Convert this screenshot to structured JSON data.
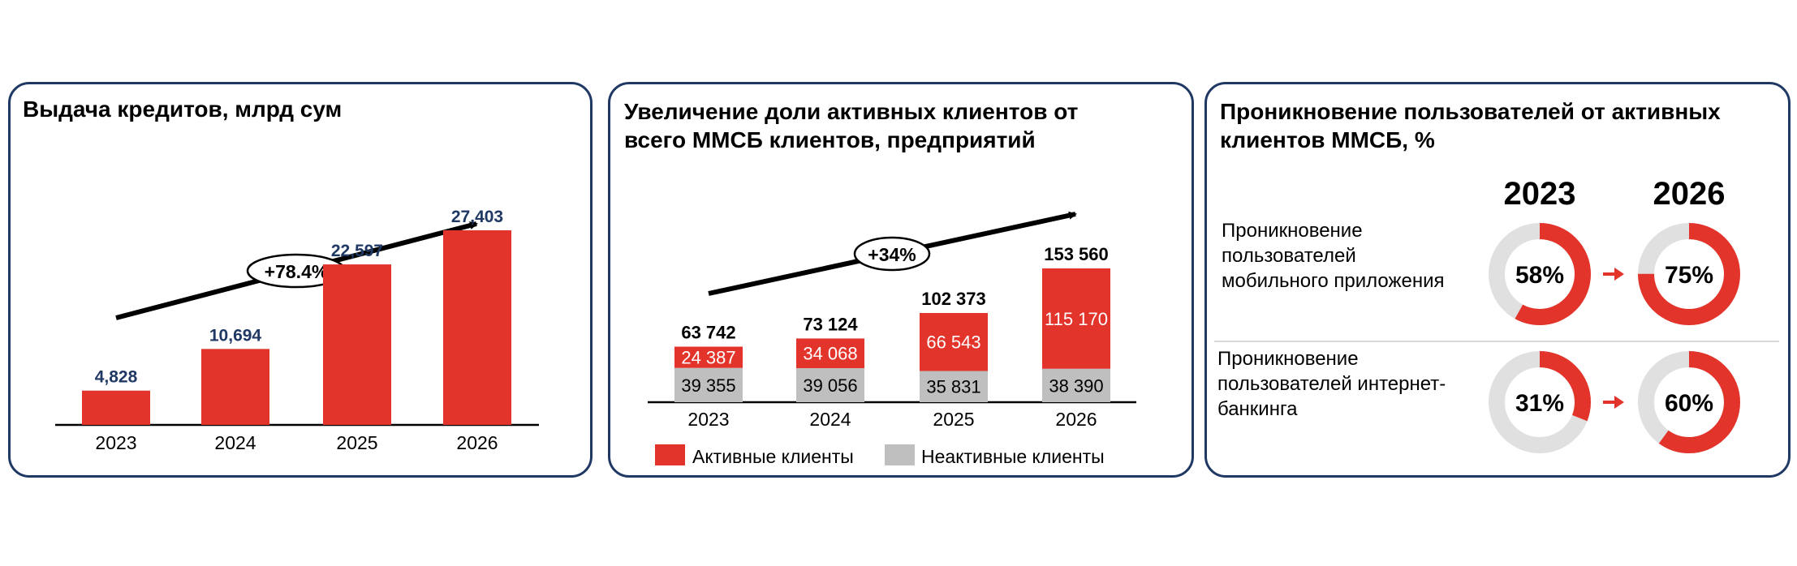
{
  "colors": {
    "accent": "#e3342b",
    "inactive": "#bfbfbf",
    "label_dark": "#1f3864",
    "border": "#1f3864",
    "donut_track": "#e0e0e0"
  },
  "chart_data": [
    {
      "type": "bar",
      "title": "Выдача кредитов, млрд сум",
      "categories": [
        "2023",
        "2024",
        "2025",
        "2026"
      ],
      "values": [
        4828,
        10694,
        22597,
        27403
      ],
      "value_labels": [
        "4,828",
        "10,694",
        "22,597",
        "27,403"
      ],
      "ylim": [
        0,
        29000
      ],
      "growth_label": "+78.4%"
    },
    {
      "type": "bar",
      "stacked": true,
      "title": "Увеличение доли активных клиентов от всего ММСБ клиентов, предприятий",
      "categories": [
        "2023",
        "2024",
        "2025",
        "2026"
      ],
      "series": [
        {
          "name": "Неактивные клиенты",
          "values": [
            39355,
            39056,
            35831,
            38390
          ],
          "labels": [
            "39 355",
            "39 056",
            "35 831",
            "38 390"
          ]
        },
        {
          "name": "Активные клиенты",
          "values": [
            24387,
            34068,
            66543,
            115170
          ],
          "labels": [
            "24 387",
            "34 068",
            "66 543",
            "115 170"
          ]
        }
      ],
      "totals": [
        "63 742",
        "73 124",
        "102 373",
        "153 560"
      ],
      "ylim": [
        0,
        160000
      ],
      "growth_label": "+34%",
      "legend": [
        "Активные клиенты",
        "Неактивные клиенты"
      ]
    },
    {
      "type": "pie",
      "title": "Проникновение пользователей от активных клиентов ММСБ, %",
      "years": [
        "2023",
        "2026"
      ],
      "rows": [
        {
          "label_lines": [
            "Проникновение",
            "пользователей",
            "мобильного приложения"
          ],
          "values": [
            58,
            75
          ],
          "value_labels": [
            "58%",
            "75%"
          ]
        },
        {
          "label_lines": [
            "Проникновение",
            "пользователей интернет-",
            "банкинга"
          ],
          "values": [
            31,
            60
          ],
          "value_labels": [
            "31%",
            "60%"
          ]
        }
      ]
    }
  ]
}
